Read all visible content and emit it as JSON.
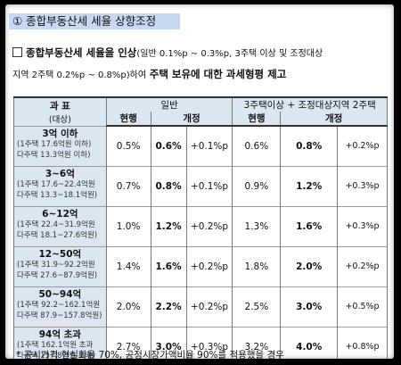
{
  "heading": "① 종합부동산세 세율 상향조정",
  "intro": {
    "part1": "종합부동산세 세율을 인상",
    "part2": "(일반 0.1%p ~ 0.3%p, 3주택 이상 및 조정대상",
    "part3": "지역 2주택 0.2%p ~ 0.8%p)하여",
    "part4": "주택 보유에 대한 과세형평 제고"
  },
  "table": {
    "header_category": "과 표",
    "header_category_sub": "(대상)",
    "header_general": "일반",
    "header_multi": "3주택이상 + 조정대상지역 2주택",
    "sub_current": "현행",
    "sub_revised": "개정",
    "rows": [
      {
        "name": "3억 이하",
        "detail1": "(1주택 17.6억원 이하)",
        "detail2": "다주택 13.3억원 이하)",
        "g_cur": "0.5%",
        "g_new": "0.6%",
        "g_diff": "+0.1%p",
        "m_cur": "0.6%",
        "m_new": "0.8%",
        "m_diff": "+0.2%p"
      },
      {
        "name": "3~6억",
        "detail1": "(1주택 17.6~22.4억원",
        "detail2": "다주택 13.3~18.1억원)",
        "g_cur": "0.7%",
        "g_new": "0.8%",
        "g_diff": "+0.1%p",
        "m_cur": "0.9%",
        "m_new": "1.2%",
        "m_diff": "+0.3%p"
      },
      {
        "name": "6~12억",
        "detail1": "(1주택 22.4~31.9억원",
        "detail2": "다주택 18.1~27.6억원)",
        "g_cur": "1.0%",
        "g_new": "1.2%",
        "g_diff": "+0.2%p",
        "m_cur": "1.3%",
        "m_new": "1.6%",
        "m_diff": "+0.3%p"
      },
      {
        "name": "12~50억",
        "detail1": "(1주택 31.9~92.2억원",
        "detail2": "다주택 27.6~87.9억원)",
        "g_cur": "1.4%",
        "g_new": "1.6%",
        "g_diff": "+0.2%p",
        "m_cur": "1.8%",
        "m_new": "2.0%",
        "m_diff": "+0.2%p"
      },
      {
        "name": "50~94억",
        "detail1": "(1주택 92.2~162.1억원",
        "detail2": "다주택 87.9~157.8억원)",
        "g_cur": "2.0%",
        "g_new": "2.2%",
        "g_diff": "+0.2%p",
        "m_cur": "2.5%",
        "m_new": "3.0%",
        "m_diff": "+0.5%p"
      },
      {
        "name": "94억 초과",
        "detail1": "(1주택 162.1억원 초과",
        "detail2": "다주택 157.8억원 초과)",
        "g_cur": "2.7%",
        "g_new": "3.0%",
        "g_diff": "+0.3%p",
        "m_cur": "3.2%",
        "m_new": "4.0%",
        "m_diff": "+0.8%p"
      }
    ]
  },
  "note": "* 공시가격 현실화율 70%, 공정시장가액비율 90%를 적용했을 경우"
}
